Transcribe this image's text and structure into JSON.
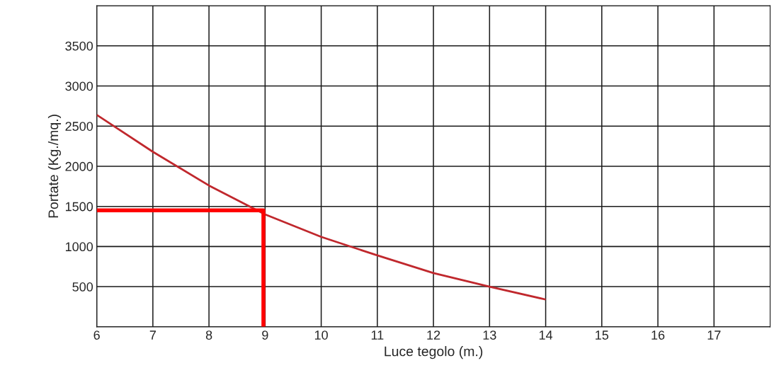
{
  "chart_data": {
    "type": "line",
    "xlabel": "Luce tegolo (m.)",
    "ylabel": "Portate (Kg./mq.)",
    "xlim": [
      6,
      18
    ],
    "xticks": [
      6,
      7,
      8,
      9,
      10,
      11,
      12,
      13,
      14,
      15,
      16,
      17
    ],
    "ylim": [
      0,
      4000
    ],
    "yticks": [
      {
        "value": 0,
        "label": null
      },
      500,
      1000,
      1500,
      2000,
      2500,
      3000,
      3500,
      {
        "value": 4000,
        "label": null
      }
    ],
    "grid": true,
    "legend": false,
    "marker": "none",
    "line_style": "solid",
    "series": [
      {
        "color": "#c0282d",
        "x": [
          6,
          7,
          8,
          9,
          10,
          11,
          12,
          13,
          14
        ],
        "values": [
          2640,
          2180,
          1760,
          1400,
          1120,
          890,
          670,
          500,
          340
        ]
      },
      {
        "color": "#ff0000",
        "x": [
          6,
          8.97,
          8.97
        ],
        "values": [
          1450,
          1450,
          0
        ]
      }
    ]
  }
}
